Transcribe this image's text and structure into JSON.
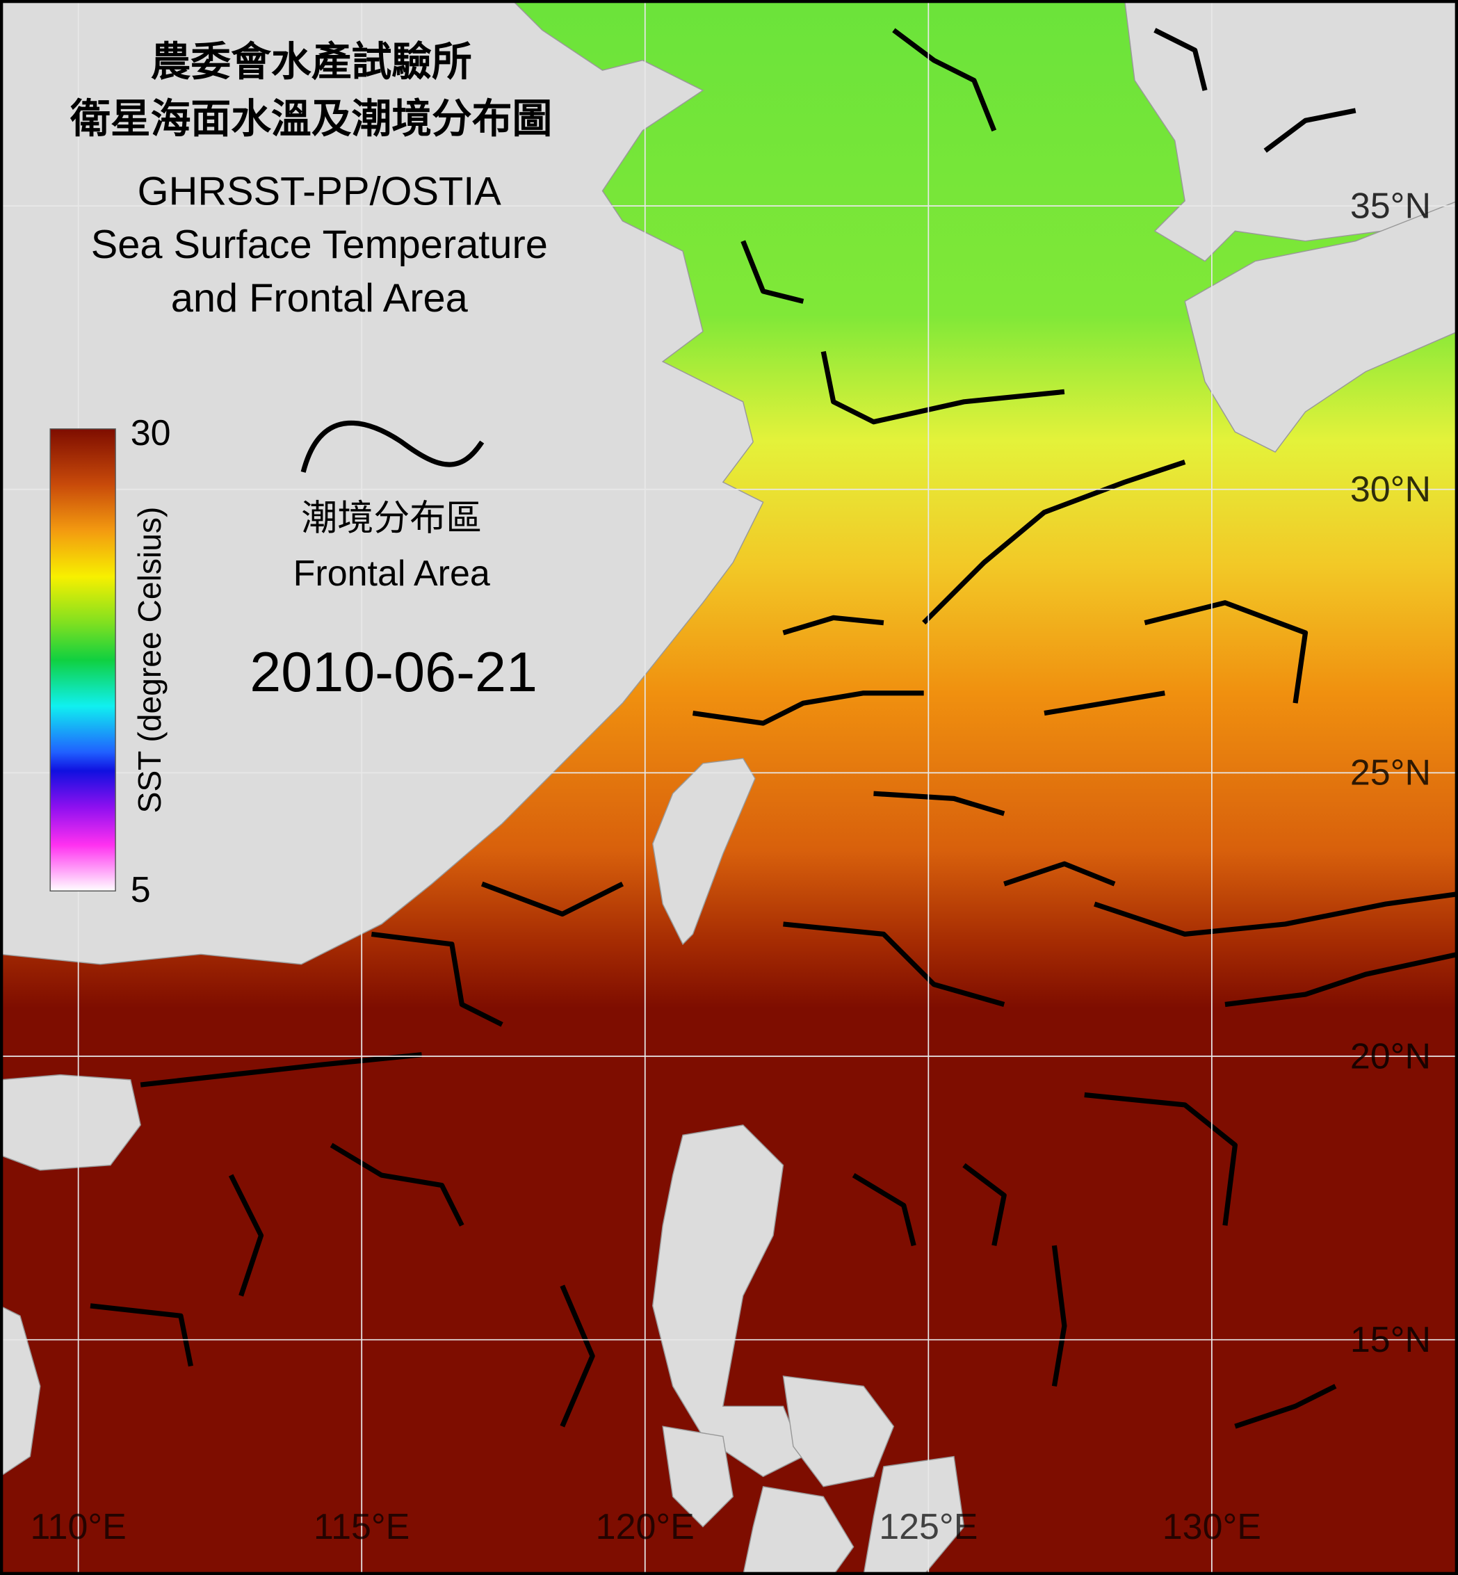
{
  "title": [
    "農委會水產試驗所",
    "衛星海面水溫及潮境分布圖",
    "GHRSST-PP/OSTIA",
    "Sea Surface Temperature",
    "and Frontal Area"
  ],
  "colorbar": {
    "label": "SST (degree Celsius)",
    "max": 30,
    "min": 5
  },
  "legend": {
    "zh": "潮境分布區",
    "en": "Frontal Area"
  },
  "date": "2010-06-21",
  "lon_ticks": [
    {
      "value": 110,
      "label": "110°E"
    },
    {
      "value": 115,
      "label": "115°E"
    },
    {
      "value": 120,
      "label": "120°E"
    },
    {
      "value": 125,
      "label": "125°E"
    },
    {
      "value": 130,
      "label": "130°E"
    }
  ],
  "lat_ticks": [
    {
      "value": 35,
      "label": "35°N"
    },
    {
      "value": 30,
      "label": "30°N"
    },
    {
      "value": 25,
      "label": "25°N"
    },
    {
      "value": 20,
      "label": "20°N"
    },
    {
      "value": 15,
      "label": "15°N"
    }
  ]
}
